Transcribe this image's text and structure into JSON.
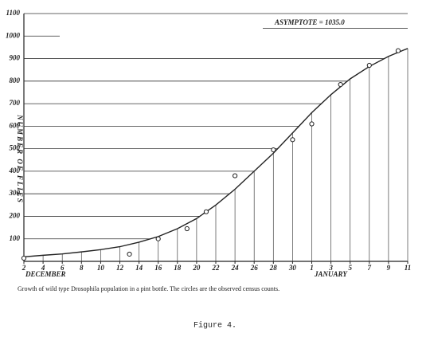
{
  "chart_data": {
    "type": "line",
    "y_label": "NUMBER OF FLIES",
    "month_labels": [
      "DECEMBER",
      "JANUARY"
    ],
    "annotation": "ASYMPTOTE = 1035.0",
    "asymptote": 1035,
    "xlim": [
      2,
      42
    ],
    "xticks": [
      2,
      4,
      6,
      8,
      10,
      12,
      14,
      16,
      18,
      20,
      22,
      24,
      26,
      28,
      30,
      {
        "value": 32,
        "label": "1"
      },
      {
        "value": 34,
        "label": "3"
      },
      {
        "value": 36,
        "label": "5"
      },
      {
        "value": 38,
        "label": "7"
      },
      {
        "value": 40,
        "label": "9"
      },
      {
        "value": 42,
        "label": "11"
      }
    ],
    "ylim": [
      0,
      1100
    ],
    "yticks": [
      100,
      200,
      300,
      400,
      500,
      600,
      700,
      800,
      900,
      1000,
      1100
    ],
    "grid": true,
    "series": [
      {
        "type": "line",
        "color": "#222222",
        "x": [
          2,
          4,
          6,
          8,
          10,
          12,
          14,
          16,
          18,
          20,
          22,
          24,
          26,
          28,
          30,
          32,
          34,
          36,
          38,
          40,
          42
        ],
        "values": [
          20,
          27,
          33,
          42,
          52,
          65,
          85,
          110,
          145,
          190,
          250,
          320,
          400,
          480,
          570,
          660,
          740,
          810,
          865,
          910,
          945
        ]
      },
      {
        "type": "scatter",
        "color": "#222222",
        "x": [
          2,
          13,
          16,
          19,
          21,
          24,
          28,
          30,
          32,
          35,
          38,
          41
        ],
        "values": [
          14,
          32,
          100,
          145,
          220,
          380,
          495,
          540,
          610,
          785,
          870,
          935
        ]
      }
    ]
  },
  "caption": "Growth of wild type Drosophila population in a pint bottle. The circles are the observed census counts.",
  "figure_label": "Figure 4."
}
